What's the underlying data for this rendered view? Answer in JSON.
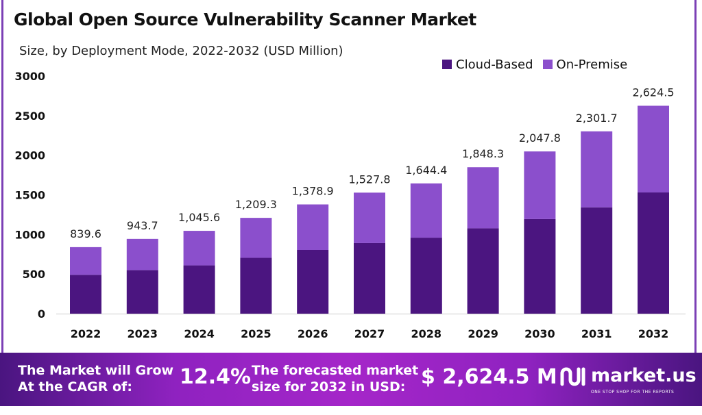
{
  "chart_data": {
    "type": "bar",
    "stacked": true,
    "title": "Global Open Source Vulnerability Scanner Market",
    "subtitle": "Size, by Deployment Mode, 2022-2032 (USD Million)",
    "categories": [
      "2022",
      "2023",
      "2024",
      "2025",
      "2026",
      "2027",
      "2028",
      "2029",
      "2030",
      "2031",
      "2032"
    ],
    "series": [
      {
        "name": "Cloud-Based",
        "color": "#4b1580",
        "values": [
          490,
          550,
          609,
          705,
          804,
          891,
          959,
          1077,
          1194,
          1342,
          1530
        ]
      },
      {
        "name": "On-Premise",
        "color": "#8b4fcc",
        "values": [
          349.6,
          393.7,
          436.6,
          504.3,
          574.9,
          636.8,
          685.4,
          771.3,
          853.8,
          959.7,
          1094.5
        ]
      }
    ],
    "totals": [
      839.6,
      943.7,
      1045.6,
      1209.3,
      1378.9,
      1527.8,
      1644.4,
      1848.3,
      2047.8,
      2301.7,
      2624.5
    ],
    "total_labels": [
      "839.6",
      "943.7",
      "1,045.6",
      "1,209.3",
      "1,378.9",
      "1,527.8",
      "1,644.4",
      "1,848.3",
      "2,047.8",
      "2,301.7",
      "2,624.5"
    ],
    "yticks": [
      "0",
      "500",
      "1000",
      "1500",
      "2000",
      "2500",
      "3000"
    ],
    "ylim": [
      0,
      3000
    ],
    "grid": false,
    "legend": "top-right"
  },
  "banner": {
    "cagr_label": "The Market will Grow At the CAGR of:",
    "cagr_value": "12.4%",
    "forecast_label": "The forecasted market size for 2032 in USD:",
    "forecast_value": "$ 2,624.5 M",
    "brand": "market.us",
    "tagline": "ONE STOP SHOP FOR THE REPORTS"
  }
}
